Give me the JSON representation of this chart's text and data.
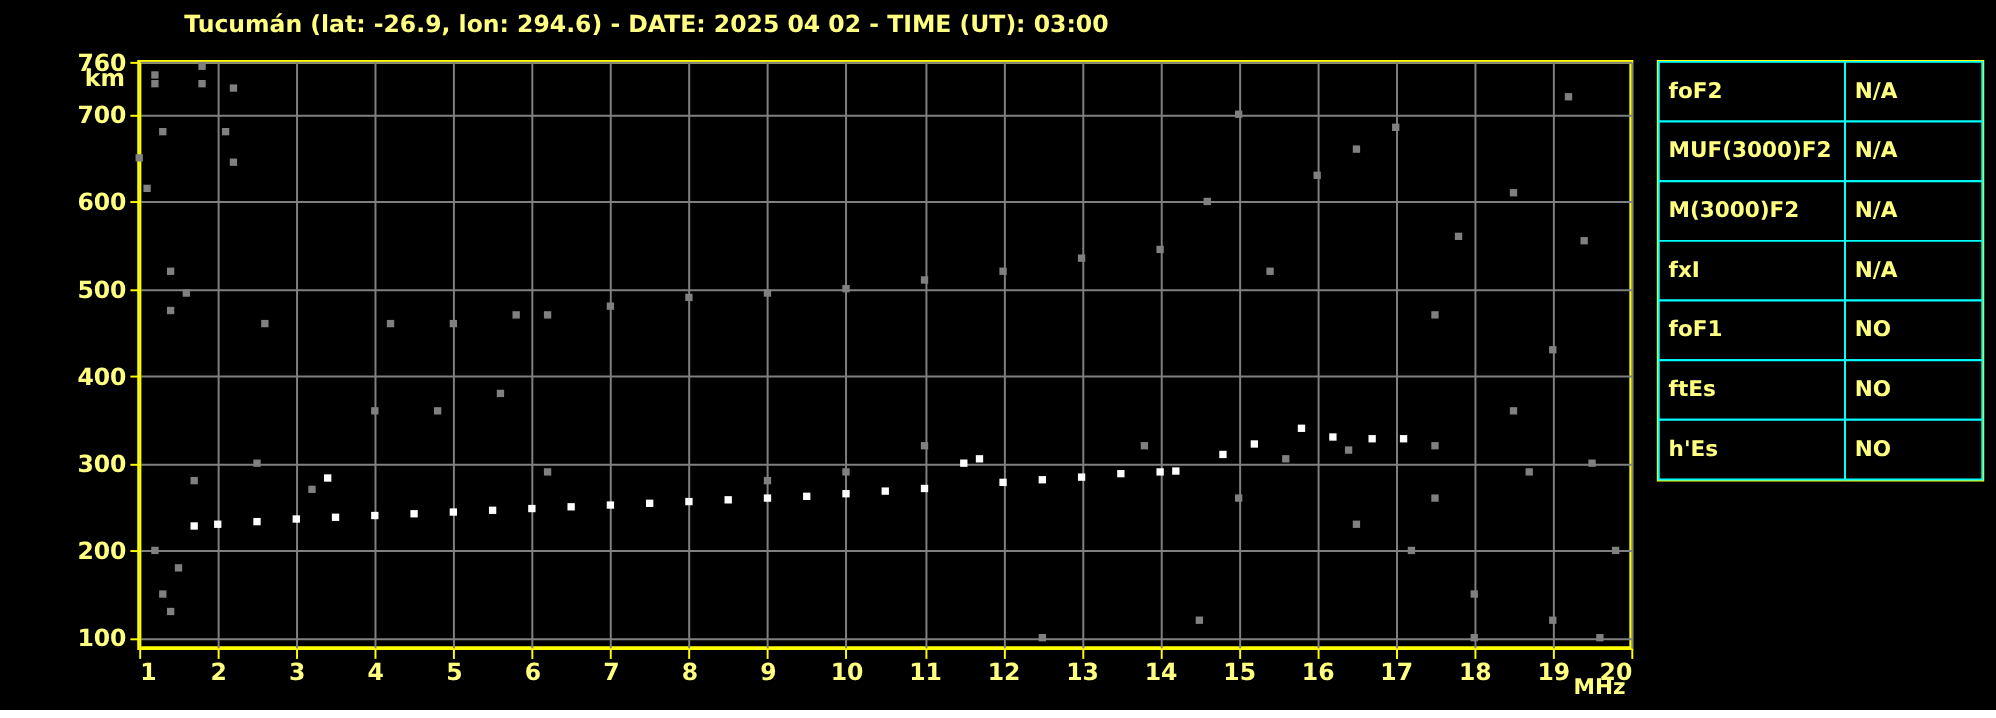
{
  "chart_data": [
    {
      "type": "scatter",
      "title": "Tucumán (lat: -26.9, lon: 294.6) - DATE: 2025 04 02 - TIME (UT): 03:00",
      "xlabel": "MHz",
      "ylabel": "km",
      "xlim": [
        1,
        20
      ],
      "ylim": [
        88,
        760
      ],
      "xticks": [
        1,
        2,
        3,
        4,
        5,
        6,
        7,
        8,
        9,
        10,
        11,
        12,
        13,
        14,
        15,
        16,
        17,
        18,
        19,
        20
      ],
      "yticks": [
        100,
        200,
        300,
        400,
        500,
        600,
        700,
        760
      ],
      "grid": true,
      "legend": false,
      "marker": "square",
      "series": [
        {
          "color": "#ffffff",
          "x": [
            1.7,
            2,
            2.5,
            3,
            3.4,
            3.5,
            4,
            4.5,
            5,
            5.5,
            6,
            6.5,
            7,
            7.5,
            8,
            8.5,
            9,
            9.5,
            10,
            10.5,
            11,
            11.5,
            11.7,
            12,
            12.5,
            13,
            13.5,
            14,
            14.2,
            14.8,
            15.2,
            15.8,
            16.2,
            16.7,
            17.1
          ],
          "values": [
            228,
            230,
            233,
            236,
            283,
            238,
            240,
            242,
            244,
            246,
            248,
            250,
            252,
            254,
            256,
            258,
            260,
            262,
            265,
            268,
            271,
            300,
            305,
            278,
            281,
            284,
            288,
            290,
            291,
            310,
            322,
            340,
            330,
            328,
            328
          ]
        },
        {
          "color": "#808080",
          "x": [
            1.2,
            1.2,
            1.8,
            1.8,
            2.2,
            2.1,
            2.2,
            1.0,
            1.3,
            1.1,
            1.4,
            1.4,
            1.6,
            2.6,
            4.2,
            5.0,
            5.8,
            6.2,
            7.0,
            8.0,
            9.0,
            10.0,
            11.0,
            12.0,
            13.0,
            14.0,
            15.0,
            16.5,
            17,
            18.5,
            19.2,
            19.4,
            17.5,
            16,
            14.6,
            15.4,
            17.8,
            19,
            18.5,
            17.5,
            16.4,
            15.6,
            13.8,
            18.7,
            19.5,
            17.2,
            18,
            15,
            16.5,
            17.5,
            14.5,
            19,
            18,
            19.6,
            1.3,
            1.4,
            1.5,
            1.2,
            1.7,
            2.5,
            4,
            4.8,
            5.6,
            3.2,
            6.2,
            9,
            10,
            11,
            12.5,
            19.8
          ],
          "values": [
            745,
            735,
            755,
            735,
            730,
            680,
            645,
            650,
            680,
            615,
            520,
            475,
            495,
            460,
            460,
            460,
            470,
            470,
            480,
            490,
            495,
            500,
            510,
            520,
            535,
            545,
            700,
            660,
            685,
            610,
            720,
            555,
            470,
            630,
            600,
            520,
            560,
            430,
            360,
            320,
            315,
            305,
            320,
            290,
            300,
            200,
            150,
            260,
            230,
            260,
            120,
            120,
            100,
            100,
            150,
            130,
            180,
            200,
            280,
            300,
            360,
            360,
            380,
            270,
            290,
            280,
            290,
            320,
            100,
            200
          ]
        }
      ]
    },
    {
      "type": "other",
      "categories": [
        "foF2",
        "MUF(3000)F2",
        "M(3000)F2",
        "fxI",
        "foF1",
        "ftEs",
        "h'Es"
      ],
      "annotations": [
        "N/A",
        "N/A",
        "N/A",
        "N/A",
        "NO",
        "NO",
        "NO"
      ]
    }
  ]
}
